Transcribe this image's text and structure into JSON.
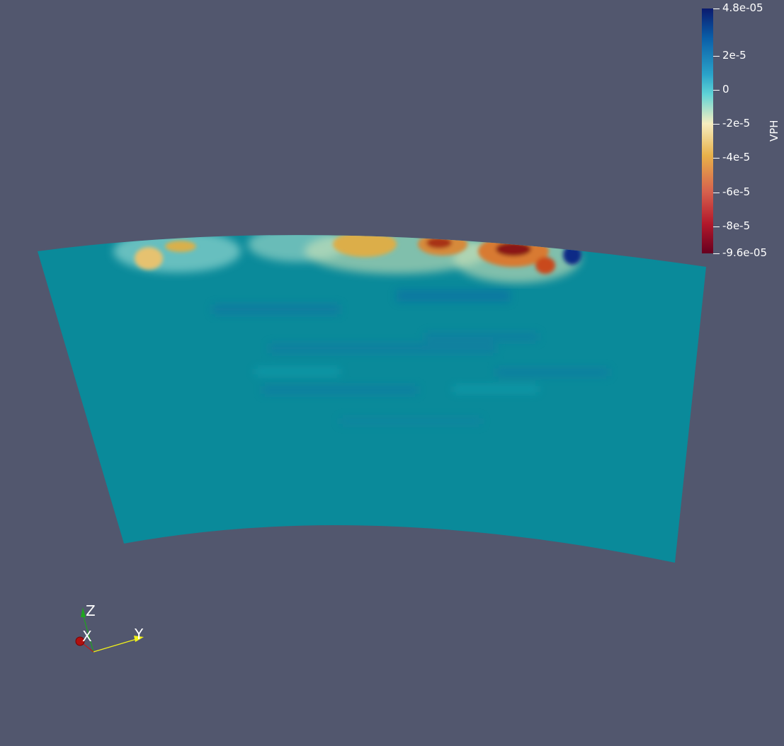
{
  "scalar_bar": {
    "title": "VPH",
    "max_label": "4.8e-05",
    "min_label": "-9.6e-05",
    "ticks": [
      {
        "value": 4.8e-05,
        "label": "4.8e-05"
      },
      {
        "value": 2e-05,
        "label": "2e-5"
      },
      {
        "value": 0,
        "label": "0"
      },
      {
        "value": -2e-05,
        "label": "-2e-5"
      },
      {
        "value": -4e-05,
        "label": "-4e-5"
      },
      {
        "value": -6e-05,
        "label": "-6e-5"
      },
      {
        "value": -8e-05,
        "label": "-8e-5"
      },
      {
        "value": -9.6e-05,
        "label": "-9.6e-05"
      }
    ],
    "range": [
      -9.6e-05,
      4.8e-05
    ],
    "colormap": [
      "#67001f",
      "#b2182b",
      "#d6604d",
      "#e8b14a",
      "#f7eec0",
      "#5fd3d6",
      "#2aa3c9",
      "#0a5ea8",
      "#0b1a6e"
    ]
  },
  "orientation_axes": {
    "x_label": "X",
    "y_label": "Y",
    "z_label": "Z",
    "x_color": "#c01818",
    "y_color": "#f2f21a",
    "z_color": "#1fa51f"
  },
  "background_color": "#52576e",
  "base_field_color": "#0a8a9a"
}
